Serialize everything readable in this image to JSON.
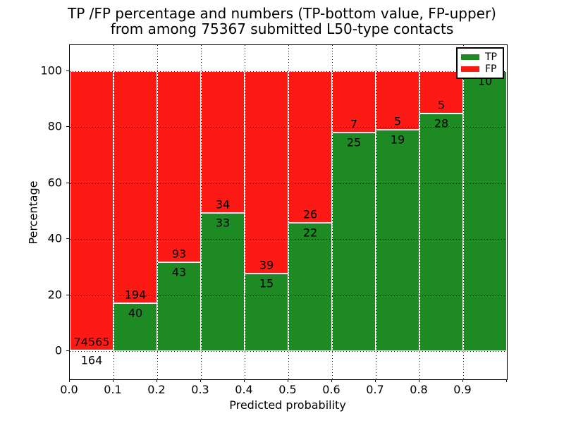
{
  "title": {
    "line1": "TP /FP percentage and numbers (TP-bottom value, FP-upper)",
    "line2": "from among 75367 submitted L50-type contacts"
  },
  "axes": {
    "xlabel": "Predicted probability",
    "ylabel": "Percentage",
    "xtick_labels": [
      "0.0",
      "0.1",
      "0.2",
      "0.3",
      "0.4",
      "0.5",
      "0.6",
      "0.7",
      "0.8",
      "0.9"
    ],
    "ytick_labels": [
      "0",
      "20",
      "40",
      "60",
      "80",
      "100"
    ],
    "ytick_values": [
      0,
      20,
      40,
      60,
      80,
      100
    ]
  },
  "legend": {
    "entries": [
      {
        "label": "TP",
        "color": "#1e8a24"
      },
      {
        "label": "FP",
        "color": "#fd1a14"
      }
    ]
  },
  "colors": {
    "tp_green": "#1e8a24",
    "fp_red": "#fd1a14",
    "grid": "#000000",
    "background": "#ffffff"
  },
  "chart_data": {
    "type": "bar",
    "stacked": true,
    "normalized_to_percent": true,
    "title": "TP /FP percentage and numbers (TP-bottom value, FP-upper) from among 75367 submitted L50-type contacts",
    "xlabel": "Predicted probability",
    "ylabel": "Percentage",
    "total_contacts": 75367,
    "bin_starts": [
      0.0,
      0.1,
      0.2,
      0.3,
      0.4,
      0.5,
      0.6,
      0.7,
      0.8,
      0.9
    ],
    "bin_width": 0.1,
    "series": [
      {
        "name": "TP",
        "position": "bottom",
        "color": "#1e8a24",
        "counts": [
          164,
          40,
          43,
          33,
          15,
          22,
          25,
          19,
          28,
          10
        ]
      },
      {
        "name": "FP",
        "position": "top",
        "color": "#fd1a14",
        "counts": [
          74565,
          194,
          93,
          34,
          39,
          26,
          7,
          5,
          5,
          0
        ]
      }
    ],
    "xlim": [
      0.0,
      1.0
    ],
    "ylim": [
      -10,
      110
    ],
    "yticks": [
      0,
      20,
      40,
      60,
      80,
      100
    ],
    "xticks": [
      0.0,
      0.1,
      0.2,
      0.3,
      0.4,
      0.5,
      0.6,
      0.7,
      0.8,
      0.9
    ],
    "grid": "dotted, drawn above bars",
    "legend_position": "upper right"
  }
}
